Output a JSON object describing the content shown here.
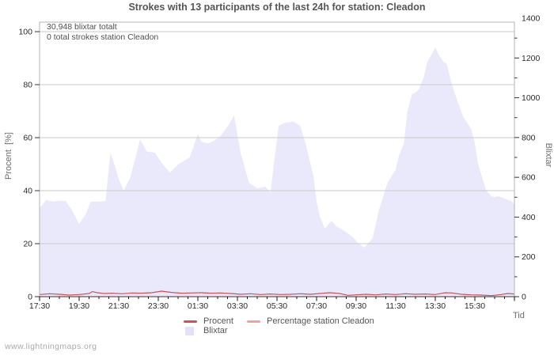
{
  "title": "Strokes with 13 participants of the last 24h for station: Cleadon",
  "annotations": {
    "total_strokes": "30,948 blixtar totalt",
    "station_strokes": "0 total strokes station Cleadon"
  },
  "watermark": "www.lightningmaps.org",
  "legend": {
    "items": [
      {
        "label": "Procent",
        "color": "#cb5353",
        "shape": "line"
      },
      {
        "label": "Percentage station Cleadon",
        "color": "#f4a0a0",
        "shape": "line"
      },
      {
        "label": "Blixtar",
        "color": "#e2e2f6",
        "shape": "square"
      }
    ]
  },
  "chart_data": {
    "type": "area",
    "title": "Strokes with 13 participants of the last 24h for station: Cleadon",
    "grid": "horizontal",
    "legend_position": "bottom-center",
    "x_axis": {
      "label": "Tid",
      "start": "17:30",
      "span_hours": 24,
      "tick_labels": [
        "17:30",
        "19:30",
        "21:30",
        "23:30",
        "01:30",
        "03:30",
        "05:30",
        "07:30",
        "09:30",
        "11:30",
        "13:30",
        "15:30"
      ]
    },
    "y_left": {
      "label": "Procent  [%]",
      "ticks": [
        0,
        20,
        40,
        60,
        80,
        100
      ],
      "range": [
        0,
        100
      ]
    },
    "y_right": {
      "label": "Blixtar",
      "ticks": [
        0,
        200,
        400,
        600,
        800,
        1000,
        1200,
        1400
      ],
      "range": [
        0,
        1400
      ]
    },
    "series": [
      {
        "name": "Blixtar",
        "type": "area",
        "axis": "right",
        "color": "#e9e9fb",
        "points": [
          [
            "17:30",
            445
          ],
          [
            "17:50",
            487
          ],
          [
            "18:10",
            478
          ],
          [
            "18:30",
            483
          ],
          [
            "18:50",
            480
          ],
          [
            "19:10",
            430
          ],
          [
            "19:30",
            365
          ],
          [
            "19:50",
            415
          ],
          [
            "20:05",
            477
          ],
          [
            "20:30",
            478
          ],
          [
            "20:50",
            481
          ],
          [
            "21:05",
            724
          ],
          [
            "21:20",
            650
          ],
          [
            "21:30",
            593
          ],
          [
            "21:45",
            533
          ],
          [
            "22:05",
            600
          ],
          [
            "22:35",
            791
          ],
          [
            "22:55",
            730
          ],
          [
            "23:20",
            724
          ],
          [
            "23:40",
            672
          ],
          [
            "00:05",
            624
          ],
          [
            "00:30",
            664
          ],
          [
            "01:05",
            700
          ],
          [
            "01:30",
            819
          ],
          [
            "01:40",
            780
          ],
          [
            "02:00",
            770
          ],
          [
            "02:20",
            784
          ],
          [
            "02:40",
            810
          ],
          [
            "03:00",
            855
          ],
          [
            "03:20",
            911
          ],
          [
            "03:40",
            720
          ],
          [
            "04:05",
            573
          ],
          [
            "04:30",
            545
          ],
          [
            "04:55",
            553
          ],
          [
            "05:10",
            525
          ],
          [
            "05:35",
            860
          ],
          [
            "05:55",
            875
          ],
          [
            "06:20",
            880
          ],
          [
            "06:40",
            860
          ],
          [
            "06:55",
            780
          ],
          [
            "07:20",
            612
          ],
          [
            "07:30",
            481
          ],
          [
            "07:40",
            402
          ],
          [
            "07:55",
            342
          ],
          [
            "08:15",
            382
          ],
          [
            "08:30",
            354
          ],
          [
            "08:55",
            330
          ],
          [
            "09:20",
            300
          ],
          [
            "09:35",
            270
          ],
          [
            "09:55",
            247
          ],
          [
            "10:20",
            294
          ],
          [
            "10:40",
            441
          ],
          [
            "11:05",
            573
          ],
          [
            "11:30",
            640
          ],
          [
            "11:40",
            712
          ],
          [
            "11:55",
            771
          ],
          [
            "12:05",
            931
          ],
          [
            "12:20",
            1018
          ],
          [
            "12:30",
            1026
          ],
          [
            "12:40",
            1042
          ],
          [
            "12:55",
            1102
          ],
          [
            "13:05",
            1177
          ],
          [
            "13:20",
            1221
          ],
          [
            "13:30",
            1253
          ],
          [
            "13:40",
            1217
          ],
          [
            "13:55",
            1181
          ],
          [
            "14:05",
            1169
          ],
          [
            "14:20",
            1070
          ],
          [
            "14:30",
            1018
          ],
          [
            "14:40",
            970
          ],
          [
            "14:55",
            903
          ],
          [
            "15:05",
            879
          ],
          [
            "15:20",
            839
          ],
          [
            "15:30",
            771
          ],
          [
            "15:40",
            664
          ],
          [
            "15:55",
            585
          ],
          [
            "16:05",
            533
          ],
          [
            "16:20",
            505
          ],
          [
            "16:30",
            501
          ],
          [
            "16:40",
            505
          ],
          [
            "16:55",
            497
          ],
          [
            "17:20",
            481
          ],
          [
            "17:30",
            465
          ]
        ]
      },
      {
        "name": "Procent",
        "type": "line",
        "axis": "left",
        "color": "#cb5353",
        "points": [
          [
            "17:30",
            0.8
          ],
          [
            "18:00",
            1.1
          ],
          [
            "18:30",
            0.9
          ],
          [
            "19:00",
            0.6
          ],
          [
            "19:30",
            0.8
          ],
          [
            "20:00",
            1.2
          ],
          [
            "20:10",
            1.9
          ],
          [
            "20:25",
            1.5
          ],
          [
            "20:45",
            1.2
          ],
          [
            "21:10",
            1.3
          ],
          [
            "21:40",
            1.1
          ],
          [
            "22:10",
            1.4
          ],
          [
            "22:40",
            1.3
          ],
          [
            "23:10",
            1.5
          ],
          [
            "23:40",
            2.1
          ],
          [
            "00:10",
            1.6
          ],
          [
            "00:40",
            1.3
          ],
          [
            "01:10",
            1.4
          ],
          [
            "01:40",
            1.5
          ],
          [
            "02:10",
            1.3
          ],
          [
            "02:40",
            1.4
          ],
          [
            "03:10",
            1.2
          ],
          [
            "03:40",
            0.9
          ],
          [
            "04:10",
            1.1
          ],
          [
            "04:40",
            0.8
          ],
          [
            "05:10",
            1.0
          ],
          [
            "05:40",
            0.8
          ],
          [
            "06:10",
            0.9
          ],
          [
            "06:40",
            1.1
          ],
          [
            "07:10",
            0.9
          ],
          [
            "07:40",
            1.2
          ],
          [
            "08:10",
            1.5
          ],
          [
            "08:40",
            1.2
          ],
          [
            "09:05",
            0.5
          ],
          [
            "09:30",
            0.7
          ],
          [
            "10:00",
            0.9
          ],
          [
            "10:30",
            0.7
          ],
          [
            "11:00",
            1.0
          ],
          [
            "11:30",
            0.8
          ],
          [
            "12:00",
            1.1
          ],
          [
            "12:30",
            0.9
          ],
          [
            "13:00",
            1.0
          ],
          [
            "13:30",
            0.8
          ],
          [
            "14:00",
            1.5
          ],
          [
            "14:20",
            1.4
          ],
          [
            "14:50",
            0.9
          ],
          [
            "15:20",
            0.7
          ],
          [
            "15:50",
            0.6
          ],
          [
            "16:20",
            0.4
          ],
          [
            "16:50",
            0.8
          ],
          [
            "17:10",
            1.2
          ],
          [
            "17:30",
            1.0
          ]
        ]
      },
      {
        "name": "Percentage station Cleadon",
        "type": "line",
        "axis": "left",
        "color": "#f4a0a0",
        "points": [
          [
            "17:30",
            0
          ],
          [
            "17:30",
            0
          ]
        ]
      }
    ]
  }
}
